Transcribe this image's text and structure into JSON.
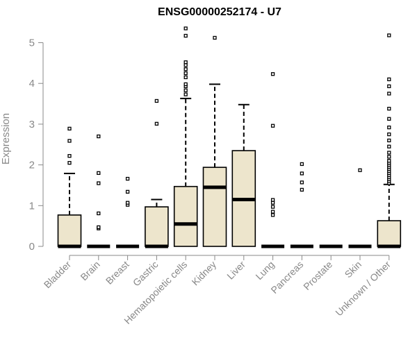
{
  "chart_data": {
    "type": "boxplot",
    "title": "ENSG00000252174 - U7",
    "xlabel": "",
    "ylabel": "Expression",
    "ylim": [
      0,
      5.3
    ],
    "yticks": [
      0,
      1,
      2,
      3,
      4,
      5
    ],
    "box_fill": "#ede5cc",
    "median_color": "#000000",
    "categories": [
      "Bladder",
      "Brain",
      "Breast",
      "Gastric",
      "Hematopoietic cells",
      "Kidney",
      "Liver",
      "Lung",
      "Pancreas",
      "Prostate",
      "Skin",
      "Unknown / Other"
    ],
    "boxes": [
      {
        "q1": 0,
        "median": 0,
        "q3": 0.77,
        "whisker_low": 0,
        "whisker_high": 1.79,
        "outliers": [
          2.05,
          2.22,
          2.59,
          2.89
        ]
      },
      {
        "q1": 0,
        "median": 0,
        "q3": 0,
        "whisker_low": 0,
        "whisker_high": 0,
        "outliers": [
          0.44,
          0.47,
          0.81,
          1.55,
          1.8,
          2.7
        ]
      },
      {
        "q1": 0,
        "median": 0,
        "q3": 0,
        "whisker_low": 0,
        "whisker_high": 0,
        "outliers": [
          1.02,
          1.07,
          1.34,
          1.66
        ]
      },
      {
        "q1": 0,
        "median": 0,
        "q3": 0.97,
        "whisker_low": 0,
        "whisker_high": 1.15,
        "outliers": [
          3.01,
          3.57
        ]
      },
      {
        "q1": 0,
        "median": 0.55,
        "q3": 1.47,
        "whisker_low": 0,
        "whisker_high": 3.63,
        "outliers": [
          3.73,
          3.83,
          3.93,
          3.98,
          4.15,
          4.25,
          4.35,
          4.45,
          4.52,
          5.17,
          5.35
        ]
      },
      {
        "q1": 0,
        "median": 1.45,
        "q3": 1.94,
        "whisker_low": 0,
        "whisker_high": 3.98,
        "outliers": [
          5.12
        ]
      },
      {
        "q1": 0,
        "median": 1.15,
        "q3": 2.35,
        "whisker_low": 0,
        "whisker_high": 3.48,
        "outliers": []
      },
      {
        "q1": 0,
        "median": 0,
        "q3": 0,
        "whisker_low": 0,
        "whisker_high": 0,
        "outliers": [
          0.77,
          0.85,
          0.97,
          1.07,
          1.14,
          2.96,
          4.23
        ]
      },
      {
        "q1": 0,
        "median": 0,
        "q3": 0,
        "whisker_low": 0,
        "whisker_high": 0,
        "outliers": [
          1.39,
          1.57,
          1.79,
          2.02
        ]
      },
      {
        "q1": 0,
        "median": 0,
        "q3": 0,
        "whisker_low": 0,
        "whisker_high": 0,
        "outliers": []
      },
      {
        "q1": 0,
        "median": 0,
        "q3": 0,
        "whisker_low": 0,
        "whisker_high": 0,
        "outliers": [
          1.87
        ]
      },
      {
        "q1": 0,
        "median": 0,
        "q3": 0.63,
        "whisker_low": 0,
        "whisker_high": 1.52,
        "outliers": [
          1.55,
          1.6,
          1.65,
          1.7,
          1.75,
          1.8,
          1.85,
          1.9,
          1.95,
          2.0,
          2.05,
          2.1,
          2.2,
          2.3,
          2.45,
          2.6,
          2.75,
          2.92,
          3.13,
          3.38,
          3.75,
          3.93,
          4.1,
          5.18
        ]
      }
    ]
  }
}
